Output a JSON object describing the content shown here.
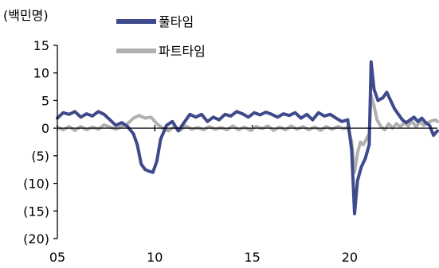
{
  "chart_data": {
    "type": "line",
    "unit_label": "(백민명)",
    "ylim": [
      -20,
      15
    ],
    "yticks": [
      15,
      10,
      5,
      0,
      -5,
      -10,
      -15,
      -20
    ],
    "ytick_labels": [
      "15",
      "10",
      "5",
      "0",
      "(5)",
      "(10)",
      "(15)",
      "(20)"
    ],
    "xlim": [
      2005,
      2024.5
    ],
    "xticks": [
      2005,
      2010,
      2015,
      2020
    ],
    "xtick_labels": [
      "05",
      "10",
      "15",
      "20"
    ],
    "grid": false,
    "zero_line": true,
    "legend_position": "top-center",
    "series": [
      {
        "name": "풀타임",
        "color": "#3e4a8b",
        "points": [
          [
            2005.0,
            1.8
          ],
          [
            2005.3,
            2.8
          ],
          [
            2005.6,
            2.5
          ],
          [
            2005.9,
            3.0
          ],
          [
            2006.2,
            2.0
          ],
          [
            2006.5,
            2.6
          ],
          [
            2006.8,
            2.2
          ],
          [
            2007.1,
            3.0
          ],
          [
            2007.4,
            2.5
          ],
          [
            2007.7,
            1.5
          ],
          [
            2008.0,
            0.5
          ],
          [
            2008.3,
            1.0
          ],
          [
            2008.6,
            0.3
          ],
          [
            2008.9,
            -1.0
          ],
          [
            2009.1,
            -3.0
          ],
          [
            2009.3,
            -6.5
          ],
          [
            2009.5,
            -7.5
          ],
          [
            2009.7,
            -7.8
          ],
          [
            2009.9,
            -8.0
          ],
          [
            2010.1,
            -6.0
          ],
          [
            2010.3,
            -2.0
          ],
          [
            2010.6,
            0.5
          ],
          [
            2010.9,
            1.2
          ],
          [
            2011.2,
            -0.5
          ],
          [
            2011.5,
            1.0
          ],
          [
            2011.8,
            2.5
          ],
          [
            2012.1,
            2.0
          ],
          [
            2012.4,
            2.5
          ],
          [
            2012.7,
            1.2
          ],
          [
            2013.0,
            2.0
          ],
          [
            2013.3,
            1.5
          ],
          [
            2013.6,
            2.5
          ],
          [
            2013.9,
            2.2
          ],
          [
            2014.2,
            3.0
          ],
          [
            2014.5,
            2.6
          ],
          [
            2014.8,
            2.0
          ],
          [
            2015.1,
            2.8
          ],
          [
            2015.4,
            2.4
          ],
          [
            2015.7,
            2.9
          ],
          [
            2016.0,
            2.5
          ],
          [
            2016.3,
            2.0
          ],
          [
            2016.6,
            2.6
          ],
          [
            2016.9,
            2.3
          ],
          [
            2017.2,
            2.8
          ],
          [
            2017.5,
            1.8
          ],
          [
            2017.8,
            2.5
          ],
          [
            2018.1,
            1.5
          ],
          [
            2018.4,
            2.8
          ],
          [
            2018.7,
            2.2
          ],
          [
            2019.0,
            2.5
          ],
          [
            2019.3,
            1.8
          ],
          [
            2019.6,
            1.2
          ],
          [
            2019.9,
            1.5
          ],
          [
            2020.1,
            -4.0
          ],
          [
            2020.25,
            -15.5
          ],
          [
            2020.4,
            -9.5
          ],
          [
            2020.6,
            -7.0
          ],
          [
            2020.8,
            -5.5
          ],
          [
            2021.0,
            -3.0
          ],
          [
            2021.1,
            12.0
          ],
          [
            2021.25,
            7.0
          ],
          [
            2021.45,
            5.0
          ],
          [
            2021.7,
            5.5
          ],
          [
            2021.9,
            6.5
          ],
          [
            2022.1,
            5.0
          ],
          [
            2022.3,
            3.5
          ],
          [
            2022.5,
            2.5
          ],
          [
            2022.7,
            1.5
          ],
          [
            2022.9,
            1.0
          ],
          [
            2023.1,
            1.5
          ],
          [
            2023.3,
            2.0
          ],
          [
            2023.5,
            1.2
          ],
          [
            2023.7,
            1.8
          ],
          [
            2023.9,
            1.0
          ],
          [
            2024.1,
            0.5
          ],
          [
            2024.3,
            -1.3
          ],
          [
            2024.5,
            -0.5
          ]
        ]
      },
      {
        "name": "파트타임",
        "color": "#b0b0b0",
        "points": [
          [
            2005.0,
            0.2
          ],
          [
            2005.3,
            -0.3
          ],
          [
            2005.6,
            0.3
          ],
          [
            2005.9,
            -0.4
          ],
          [
            2006.2,
            0.3
          ],
          [
            2006.5,
            -0.3
          ],
          [
            2006.8,
            0.2
          ],
          [
            2007.1,
            -0.2
          ],
          [
            2007.4,
            0.6
          ],
          [
            2007.7,
            0.2
          ],
          [
            2008.0,
            -0.2
          ],
          [
            2008.3,
            0.3
          ],
          [
            2008.6,
            0.8
          ],
          [
            2008.9,
            1.8
          ],
          [
            2009.2,
            2.3
          ],
          [
            2009.5,
            1.8
          ],
          [
            2009.8,
            2.0
          ],
          [
            2010.1,
            0.8
          ],
          [
            2010.4,
            0.0
          ],
          [
            2010.7,
            -0.5
          ],
          [
            2011.0,
            0.3
          ],
          [
            2011.3,
            -0.4
          ],
          [
            2011.6,
            0.4
          ],
          [
            2011.9,
            -0.2
          ],
          [
            2012.2,
            0.1
          ],
          [
            2012.5,
            -0.3
          ],
          [
            2012.8,
            0.3
          ],
          [
            2013.1,
            -0.2
          ],
          [
            2013.4,
            0.1
          ],
          [
            2013.7,
            -0.3
          ],
          [
            2014.0,
            0.4
          ],
          [
            2014.3,
            -0.3
          ],
          [
            2014.6,
            0.2
          ],
          [
            2014.9,
            -0.4
          ],
          [
            2015.2,
            0.3
          ],
          [
            2015.5,
            -0.1
          ],
          [
            2015.8,
            0.4
          ],
          [
            2016.1,
            -0.4
          ],
          [
            2016.4,
            0.2
          ],
          [
            2016.7,
            -0.3
          ],
          [
            2017.0,
            0.4
          ],
          [
            2017.3,
            -0.2
          ],
          [
            2017.6,
            0.3
          ],
          [
            2017.9,
            -0.3
          ],
          [
            2018.2,
            0.2
          ],
          [
            2018.5,
            -0.4
          ],
          [
            2018.8,
            0.3
          ],
          [
            2019.1,
            -0.2
          ],
          [
            2019.4,
            0.3
          ],
          [
            2019.7,
            -0.1
          ],
          [
            2019.9,
            0.2
          ],
          [
            2020.1,
            -2.5
          ],
          [
            2020.25,
            -8.0
          ],
          [
            2020.4,
            -4.5
          ],
          [
            2020.55,
            -2.5
          ],
          [
            2020.7,
            -3.0
          ],
          [
            2020.85,
            -2.0
          ],
          [
            2021.0,
            -1.0
          ],
          [
            2021.1,
            6.0
          ],
          [
            2021.25,
            4.0
          ],
          [
            2021.4,
            1.5
          ],
          [
            2021.6,
            0.3
          ],
          [
            2021.8,
            -0.3
          ],
          [
            2022.0,
            0.8
          ],
          [
            2022.2,
            0.0
          ],
          [
            2022.4,
            0.8
          ],
          [
            2022.6,
            0.2
          ],
          [
            2022.8,
            1.0
          ],
          [
            2023.0,
            0.4
          ],
          [
            2023.2,
            1.3
          ],
          [
            2023.4,
            0.2
          ],
          [
            2023.6,
            1.2
          ],
          [
            2023.8,
            0.5
          ],
          [
            2024.0,
            1.0
          ],
          [
            2024.2,
            1.3
          ],
          [
            2024.4,
            1.5
          ],
          [
            2024.5,
            1.2
          ]
        ]
      }
    ]
  }
}
